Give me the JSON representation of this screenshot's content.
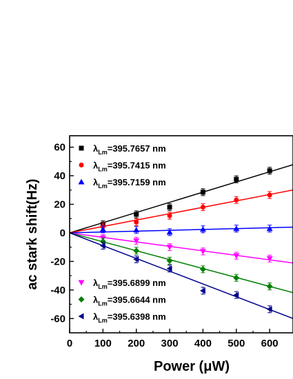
{
  "chart_data": {
    "type": "scatter",
    "xlabel": "Power (μW)",
    "ylabel": "ac stark shift(Hz)",
    "xlim": [
      0,
      670
    ],
    "ylim": [
      -70,
      68
    ],
    "xticks": [
      0,
      100,
      200,
      300,
      400,
      500,
      600
    ],
    "yticks": [
      -60,
      -40,
      -20,
      0,
      20,
      40,
      60
    ],
    "x": [
      100,
      200,
      300,
      400,
      500,
      600
    ],
    "legend_placement": "upper-left and lower-left",
    "grid": false,
    "series": [
      {
        "name": "λLm=395.7657 nm",
        "label_main": "λ",
        "label_sub": "Lm",
        "label_rest": "=395.7657 nm",
        "values": [
          6,
          13,
          18,
          28.5,
          37.5,
          43.5
        ],
        "slope": 0.0713,
        "color": "#000000",
        "marker": "square"
      },
      {
        "name": "λLm=395.7415 nm",
        "label_main": "λ",
        "label_sub": "Lm",
        "label_rest": "=395.7415 nm",
        "values": [
          4.5,
          7.5,
          12,
          18,
          23,
          26.5
        ],
        "slope": 0.0448,
        "color": "#ff0000",
        "marker": "circle"
      },
      {
        "name": "λLm=395.7159 nm",
        "label_main": "λ",
        "label_sub": "Lm",
        "label_rest": "=395.7159 nm",
        "values": [
          2.5,
          2,
          0.5,
          2.5,
          3,
          3
        ],
        "slope": 0.006,
        "color": "#0000ff",
        "marker": "triangle-up"
      },
      {
        "name": "λLm=395.6899 nm",
        "label_main": "λ",
        "label_sub": "Lm",
        "label_rest": "=395.6899 nm",
        "values": [
          -3.5,
          -5.5,
          -10,
          -13,
          -16,
          -18
        ],
        "slope": -0.0315,
        "color": "#ff00ff",
        "marker": "triangle-down"
      },
      {
        "name": "λLm=395.6644 nm",
        "label_main": "λ",
        "label_sub": "Lm",
        "label_rest": "=395.6644 nm",
        "values": [
          -6,
          -12.5,
          -19.5,
          -25.5,
          -31.5,
          -37.5
        ],
        "slope": -0.0625,
        "color": "#008000",
        "marker": "diamond"
      },
      {
        "name": "λLm=395.6398 nm",
        "label_main": "λ",
        "label_sub": "Lm",
        "label_rest": "=395.6398 nm",
        "values": [
          -9,
          -18.5,
          -25,
          -40.5,
          -43.5,
          -53.5
        ],
        "slope": -0.0895,
        "color": "#00008b",
        "marker": "triangle-left"
      }
    ]
  }
}
